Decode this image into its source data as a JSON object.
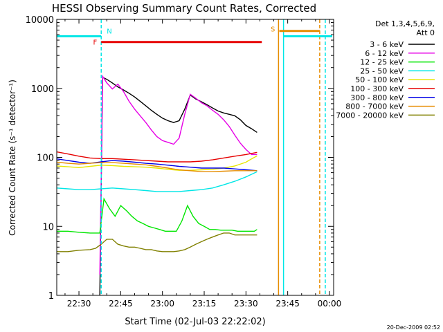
{
  "chart_data": {
    "type": "line",
    "title": "HESSI Observing Summary Count Rates, Corrected",
    "xlabel": "Start Time (02-Jul-03 22:22:02)",
    "ylabel": "Corrected Count Rate (s⁻¹ detector⁻¹)",
    "yscale": "log",
    "xlim_minutes": [
      22.03,
      121.5
    ],
    "ylim": [
      1,
      10000
    ],
    "x_ticks": [
      {
        "min": 30,
        "label": "22:30"
      },
      {
        "min": 45,
        "label": "22:45"
      },
      {
        "min": 60,
        "label": "23:00"
      },
      {
        "min": 75,
        "label": "23:15"
      },
      {
        "min": 90,
        "label": "23:30"
      },
      {
        "min": 105,
        "label": "23:45"
      },
      {
        "min": 120,
        "label": "00:00"
      }
    ],
    "y_ticks": [
      {
        "value": 1,
        "label": "1"
      },
      {
        "value": 10,
        "label": "10"
      },
      {
        "value": 100,
        "label": "100"
      },
      {
        "value": 1000,
        "label": "1000"
      },
      {
        "value": 10000,
        "label": "10000"
      }
    ],
    "legend": {
      "placement": "right",
      "header": [
        "Det 1,3,4,5,6,9,",
        "Att 0"
      ]
    },
    "series": [
      {
        "name": "3 - 6 keV",
        "color": "#000000",
        "x": [
          37.5,
          38.5,
          40,
          42,
          44,
          46,
          48,
          50,
          52,
          54,
          56,
          58,
          60,
          62,
          64,
          66,
          68,
          70,
          72,
          74,
          76,
          78,
          80,
          82,
          84,
          86,
          88,
          90,
          92,
          94
        ],
        "y": [
          1,
          1450,
          1350,
          1200,
          1050,
          950,
          850,
          750,
          650,
          560,
          480,
          420,
          370,
          340,
          320,
          340,
          500,
          800,
          700,
          640,
          580,
          520,
          470,
          440,
          420,
          400,
          350,
          290,
          260,
          230
        ]
      },
      {
        "name": "6 - 12 keV",
        "color": "#e600e6",
        "x": [
          37.5,
          38.5,
          40,
          42,
          44,
          46,
          48,
          50,
          52,
          54,
          56,
          58,
          60,
          62,
          64,
          66,
          68,
          70,
          72,
          74,
          76,
          78,
          80,
          82,
          84,
          86,
          88,
          90,
          92,
          94
        ],
        "y": [
          2,
          1500,
          1200,
          980,
          1150,
          900,
          650,
          500,
          400,
          320,
          250,
          200,
          175,
          165,
          155,
          190,
          420,
          820,
          720,
          620,
          560,
          480,
          420,
          350,
          280,
          210,
          160,
          130,
          110,
          110
        ]
      },
      {
        "name": "12 - 25 keV",
        "color": "#00e600",
        "x": [
          22,
          26,
          30,
          34,
          36,
          37.5,
          39,
          41,
          43,
          45,
          47,
          49,
          51,
          53,
          55,
          57,
          59,
          61,
          63,
          65,
          67,
          69,
          71,
          73,
          75,
          77,
          79,
          81,
          83,
          85,
          87,
          89,
          91,
          93,
          94
        ],
        "y": [
          8.5,
          8.5,
          8.2,
          8,
          8,
          8,
          25,
          18,
          14,
          20,
          17,
          14,
          12,
          11,
          10,
          9.5,
          9,
          8.5,
          8.5,
          8.5,
          12,
          20,
          14,
          11,
          10,
          9,
          9,
          8.8,
          8.8,
          8.8,
          8.5,
          8.5,
          8.5,
          8.5,
          9
        ]
      },
      {
        "name": "25 - 50 keV",
        "color": "#00e6e6",
        "x": [
          22,
          26,
          30,
          34,
          38,
          42,
          46,
          50,
          54,
          58,
          62,
          66,
          70,
          74,
          78,
          82,
          86,
          90,
          94
        ],
        "y": [
          36,
          35,
          34,
          34,
          35,
          36,
          35,
          34,
          33,
          32,
          32,
          32,
          33,
          34,
          36,
          40,
          45,
          52,
          62
        ]
      },
      {
        "name": "50 - 100 keV",
        "color": "#e6e600",
        "x": [
          22,
          26,
          30,
          34,
          38,
          42,
          46,
          50,
          54,
          58,
          62,
          66,
          70,
          74,
          78,
          82,
          86,
          90,
          92,
          94
        ],
        "y": [
          75,
          73,
          71,
          74,
          77,
          76,
          74,
          73,
          72,
          70,
          67,
          65,
          65,
          66,
          67,
          70,
          75,
          85,
          95,
          105
        ]
      },
      {
        "name": "100 - 300 keV",
        "color": "#e60000",
        "x": [
          22,
          26,
          30,
          34,
          38,
          42,
          46,
          50,
          54,
          58,
          62,
          66,
          70,
          74,
          78,
          82,
          86,
          90,
          94
        ],
        "y": [
          120,
          112,
          104,
          98,
          96,
          96,
          94,
          92,
          90,
          88,
          86,
          86,
          86,
          88,
          92,
          98,
          104,
          110,
          118
        ]
      },
      {
        "name": "300 - 800 keV",
        "color": "#0000e6",
        "x": [
          22,
          26,
          30,
          34,
          38,
          42,
          46,
          50,
          54,
          58,
          62,
          66,
          70,
          74,
          78,
          82,
          86,
          90,
          94
        ],
        "y": [
          95,
          90,
          85,
          82,
          86,
          90,
          88,
          85,
          82,
          80,
          77,
          74,
          72,
          70,
          70,
          70,
          68,
          66,
          64
        ]
      },
      {
        "name": "800 - 7000 keV",
        "color": "#e68c00",
        "x": [
          22,
          26,
          30,
          34,
          38,
          42,
          46,
          50,
          54,
          58,
          62,
          66,
          70,
          74,
          78,
          82,
          86,
          90,
          94
        ],
        "y": [
          85,
          82,
          80,
          82,
          84,
          84,
          82,
          80,
          78,
          74,
          70,
          66,
          64,
          62,
          62,
          63,
          64,
          64,
          64
        ]
      },
      {
        "name": "7000 - 20000 keV",
        "color": "#808000",
        "x": [
          22,
          26,
          30,
          34,
          36,
          38,
          40,
          42,
          44,
          46,
          48,
          50,
          52,
          54,
          56,
          58,
          60,
          62,
          64,
          66,
          68,
          70,
          72,
          74,
          76,
          78,
          80,
          82,
          84,
          86,
          88,
          90,
          92,
          94
        ],
        "y": [
          4.3,
          4.3,
          4.5,
          4.6,
          4.8,
          5.5,
          6.5,
          6.5,
          5.5,
          5.2,
          5,
          5,
          4.8,
          4.6,
          4.6,
          4.4,
          4.3,
          4.3,
          4.3,
          4.4,
          4.6,
          5,
          5.5,
          6,
          6.5,
          7,
          7.5,
          8,
          8,
          7.5,
          7.5,
          7.5,
          7.5,
          7.5
        ]
      }
    ],
    "annotations": [
      {
        "label": "N",
        "color": "#00e6e6"
      },
      {
        "label": "F",
        "color": "#e60000"
      },
      {
        "label": "S",
        "color": "#e68c00"
      }
    ],
    "intervals": [
      {
        "kind": "night",
        "color": "#00e6e6",
        "from": 22.03,
        "to": 38,
        "level": 5700
      },
      {
        "kind": "night",
        "color": "#00e6e6",
        "from": 103.5,
        "to": 121,
        "level": 5700
      },
      {
        "kind": "flare",
        "color": "#e60000",
        "from": 38,
        "to": 95.7,
        "level": 4700
      },
      {
        "kind": "saa",
        "color": "#e68c00",
        "from": 102,
        "to": 116.5,
        "level": 6800
      }
    ],
    "markers": [
      {
        "min": 38,
        "color": "#00e6e6",
        "style": "dashed"
      },
      {
        "min": 101.7,
        "color": "#e68c00",
        "style": "solid"
      },
      {
        "min": 103.5,
        "color": "#00e6e6",
        "style": "solid"
      },
      {
        "min": 116.5,
        "color": "#e68c00",
        "style": "dashed"
      },
      {
        "min": 118.5,
        "color": "#00e6e6",
        "style": "dashed"
      }
    ]
  },
  "footer": {
    "timestamp": "20-Dec-2009 02:52"
  }
}
